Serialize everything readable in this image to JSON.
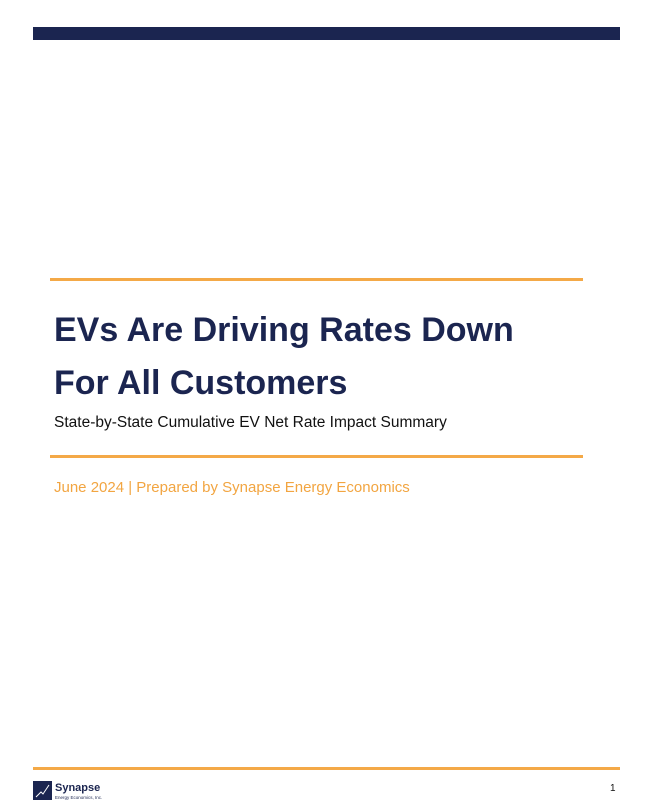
{
  "document": {
    "title_lines": [
      "EVs Are Driving Rates Down",
      "For All Customers"
    ],
    "subtitle": "State-by-State Cumulative EV Net Rate Impact Summary",
    "date_line": "June 2024 | Prepared by Synapse Energy Economics",
    "footer": {
      "logo_name": "Synapse",
      "logo_subtitle": "Energy Economics, Inc.",
      "page_number": 1
    }
  }
}
